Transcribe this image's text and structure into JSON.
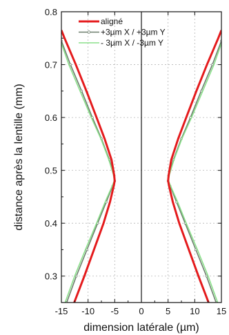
{
  "chart_data": {
    "type": "line",
    "title": "",
    "xlabel": "dimension latérale (µm)",
    "ylabel": "distance après la lentille (mm)",
    "xlim": [
      -15,
      15
    ],
    "ylim": [
      0.25,
      0.8
    ],
    "xticks": [
      -15,
      -10,
      -5,
      0,
      5,
      10,
      15
    ],
    "yticks": [
      0.3,
      0.4,
      0.5,
      0.6,
      0.7,
      0.8
    ],
    "xtick_labels": [
      "-15",
      "-10",
      "-5",
      "0",
      "5",
      "10",
      "15"
    ],
    "ytick_labels": [
      "0.3",
      "0.4",
      "0.5",
      "0.6",
      "0.7",
      "0.8"
    ],
    "grid": true,
    "legend_position": "top-right",
    "series": [
      {
        "name": "aligné",
        "color": "#e41a1c",
        "style": "solid-thick",
        "y": [
          0.25,
          0.3,
          0.35,
          0.4,
          0.44,
          0.47,
          0.48,
          0.49,
          0.52,
          0.56,
          0.6,
          0.65,
          0.7,
          0.75,
          0.765
        ],
        "x_right": [
          12.6,
          10.7,
          8.9,
          7.1,
          5.9,
          5.2,
          5.0,
          5.1,
          5.6,
          6.9,
          8.4,
          10.3,
          12.3,
          14.4,
          15.0
        ],
        "x_left": [
          -12.6,
          -10.7,
          -8.9,
          -7.1,
          -5.9,
          -5.2,
          -5.0,
          -5.1,
          -5.6,
          -6.9,
          -8.4,
          -10.3,
          -12.3,
          -14.4,
          -15.0
        ]
      },
      {
        "name": "+3µm X / +3µm Y",
        "color": "#6d7f6d",
        "style": "solid-markers",
        "y": [
          0.25,
          0.3,
          0.35,
          0.4,
          0.44,
          0.47,
          0.48,
          0.49,
          0.52,
          0.56,
          0.6,
          0.65,
          0.7,
          0.745
        ],
        "x_right": [
          14.0,
          12.2,
          10.2,
          8.2,
          6.6,
          5.4,
          5.0,
          5.1,
          6.0,
          7.5,
          9.2,
          11.2,
          13.3,
          15.0
        ],
        "x_left": [
          -14.0,
          -12.2,
          -10.2,
          -8.2,
          -6.6,
          -5.4,
          -5.0,
          -5.1,
          -6.0,
          -7.5,
          -9.2,
          -11.2,
          -13.3,
          -15.0
        ]
      },
      {
        "name": "- 3µm X / -3µm Y",
        "color": "#8ae08a",
        "style": "solid",
        "y": [
          0.25,
          0.3,
          0.35,
          0.4,
          0.44,
          0.47,
          0.48,
          0.49,
          0.52,
          0.56,
          0.6,
          0.65,
          0.7,
          0.74
        ],
        "x_right": [
          14.3,
          12.5,
          10.5,
          8.4,
          6.8,
          5.5,
          5.1,
          5.2,
          6.1,
          7.6,
          9.4,
          11.5,
          13.6,
          15.0
        ],
        "x_left": [
          -14.3,
          -12.5,
          -10.5,
          -8.4,
          -6.8,
          -5.5,
          -5.1,
          -5.2,
          -6.1,
          -7.6,
          -9.4,
          -11.5,
          -13.6,
          -15.0
        ]
      }
    ]
  }
}
